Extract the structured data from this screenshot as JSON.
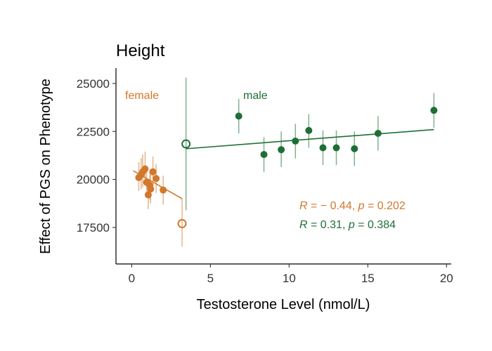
{
  "chart_data": {
    "type": "scatter",
    "title": "Height",
    "xlabel": "Testosterone Level (nmol/L)",
    "ylabel": "Effect of PGS on Phenotype",
    "xlim": [
      -1,
      20.3
    ],
    "ylim": [
      15600,
      25800
    ],
    "xticks": [
      0,
      5,
      10,
      15,
      20
    ],
    "yticks": [
      17500,
      20000,
      22500,
      25000
    ],
    "grid": false,
    "colors": {
      "female": "#D2772B",
      "male": "#1E6F35"
    },
    "series": [
      {
        "name": "female",
        "color": "#D2772B",
        "points": [
          {
            "x": 0.45,
            "y": 20100,
            "lo": 19400,
            "hi": 20900
          },
          {
            "x": 0.6,
            "y": 20250,
            "lo": 19500,
            "hi": 21100
          },
          {
            "x": 0.7,
            "y": 20400,
            "lo": 19600,
            "hi": 21300
          },
          {
            "x": 0.85,
            "y": 20550,
            "lo": 19750,
            "hi": 21450
          },
          {
            "x": 0.95,
            "y": 19850,
            "lo": 19100,
            "hi": 20650
          },
          {
            "x": 1.05,
            "y": 19200,
            "lo": 18450,
            "hi": 19950
          },
          {
            "x": 1.15,
            "y": 19700,
            "lo": 18950,
            "hi": 20500
          },
          {
            "x": 1.2,
            "y": 19500,
            "lo": 18750,
            "hi": 20250
          },
          {
            "x": 1.35,
            "y": 20400,
            "lo": 19600,
            "hi": 21200
          },
          {
            "x": 1.55,
            "y": 20050,
            "lo": 19300,
            "hi": 20800
          },
          {
            "x": 2.0,
            "y": 19450,
            "lo": 18700,
            "hi": 20200
          }
        ],
        "outlier": {
          "x": 3.2,
          "y": 17700,
          "lo": 16500,
          "hi": 19000
        },
        "fit": {
          "x0": 0.1,
          "y0": 20450,
          "x1": 3.2,
          "y1": 19000
        }
      },
      {
        "name": "male",
        "color": "#1E6F35",
        "points": [
          {
            "x": 6.8,
            "y": 23300,
            "lo": 22400,
            "hi": 24200
          },
          {
            "x": 8.4,
            "y": 21300,
            "lo": 20400,
            "hi": 22200
          },
          {
            "x": 9.5,
            "y": 21550,
            "lo": 20650,
            "hi": 22500
          },
          {
            "x": 10.4,
            "y": 22000,
            "lo": 21100,
            "hi": 22900
          },
          {
            "x": 11.25,
            "y": 22550,
            "lo": 21650,
            "hi": 23400
          },
          {
            "x": 12.15,
            "y": 21650,
            "lo": 20750,
            "hi": 22550
          },
          {
            "x": 13.0,
            "y": 21650,
            "lo": 20750,
            "hi": 22550
          },
          {
            "x": 14.15,
            "y": 21600,
            "lo": 20700,
            "hi": 22500
          },
          {
            "x": 15.65,
            "y": 22400,
            "lo": 21500,
            "hi": 23300
          },
          {
            "x": 19.2,
            "y": 23600,
            "lo": 22700,
            "hi": 24500
          }
        ],
        "outlier": {
          "x": 3.45,
          "y": 21850,
          "lo": 18400,
          "hi": 25300
        },
        "fit": {
          "x0": 3.45,
          "y0": 21600,
          "x1": 19.2,
          "y1": 22600
        }
      }
    ],
    "annotations": {
      "female_label": "female",
      "male_label": "male",
      "female_stat_r": "R",
      "female_stat_rest": " = − 0.44, ",
      "female_stat_p": "p",
      "female_stat_p_rest": " = 0.202",
      "male_stat_r": "R",
      "male_stat_rest": " = 0.31, ",
      "male_stat_p": "p",
      "male_stat_p_rest": " = 0.384"
    }
  }
}
